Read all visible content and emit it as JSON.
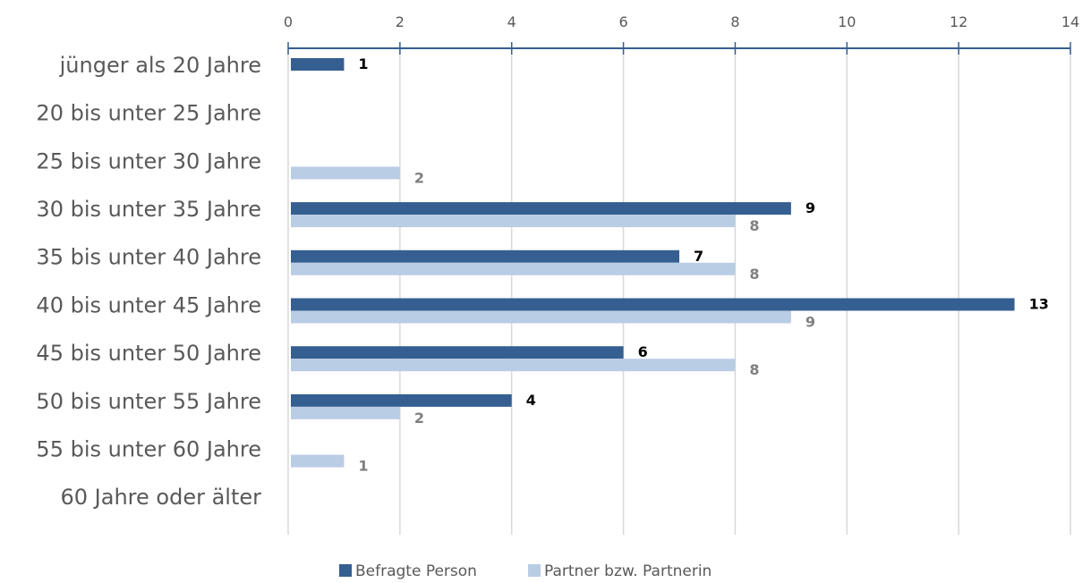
{
  "chart_data": {
    "type": "bar",
    "orientation": "horizontal",
    "categories": [
      "jünger als 20 Jahre",
      "20 bis unter 25 Jahre",
      "25 bis unter 30 Jahre",
      "30 bis unter 35 Jahre",
      "35 bis unter 40 Jahre",
      "40 bis unter 45 Jahre",
      "45 bis unter 50 Jahre",
      "50 bis unter 55 Jahre",
      "55 bis unter 60 Jahre",
      "60 Jahre oder älter"
    ],
    "series": [
      {
        "name": "Befragte Person",
        "color": "#355F91",
        "label_color": "#000000",
        "values": [
          1,
          0,
          0,
          9,
          7,
          13,
          6,
          4,
          0,
          0
        ]
      },
      {
        "name": "Partner bzw. Partnerin",
        "color": "#B9CDE5",
        "label_color": "#7F7F7F",
        "values": [
          0,
          0,
          2,
          8,
          8,
          9,
          8,
          2,
          1,
          0
        ]
      }
    ],
    "xlim": [
      0,
      14
    ],
    "x_ticks": [
      0,
      2,
      4,
      6,
      8,
      10,
      12,
      14
    ],
    "x_axis_position": "top",
    "grid": true,
    "grid_color": "#D9D9D9",
    "axis_color": "#355F91",
    "legend_position": "bottom",
    "title": "",
    "xlabel": "",
    "ylabel": ""
  }
}
